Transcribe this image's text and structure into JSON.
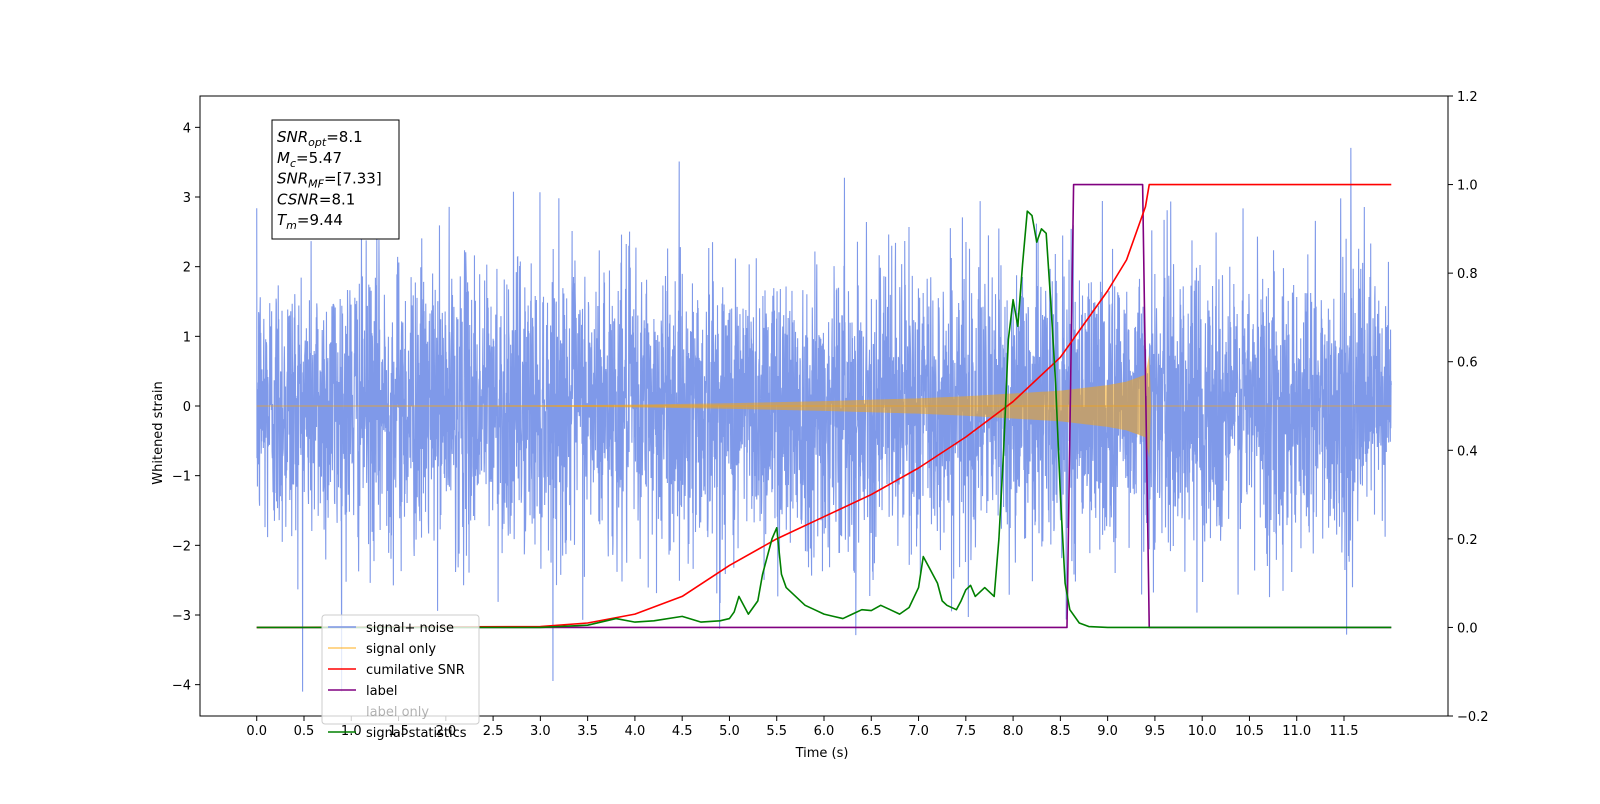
{
  "chart_data": {
    "type": "line",
    "xlabel": "Time (s)",
    "ylabel": "Whitened strain",
    "xlim": [
      -0.6,
      12.6
    ],
    "ylim_left": [
      -4.45,
      4.45
    ],
    "ylim_right": [
      -0.2,
      1.2
    ],
    "x_ticks": [
      0.0,
      0.5,
      1.0,
      1.5,
      2.0,
      2.5,
      3.0,
      3.5,
      4.0,
      4.5,
      5.0,
      5.5,
      6.0,
      6.5,
      7.0,
      7.5,
      8.0,
      8.5,
      9.0,
      9.5,
      10.0,
      10.5,
      11.0,
      11.5
    ],
    "x_tick_labels": [
      "0.0",
      "0.5",
      "1.0",
      "1.5",
      "2.0",
      "2.5",
      "3.0",
      "3.5",
      "4.0",
      "4.5",
      "5.0",
      "5.5",
      "6.0",
      "6.5",
      "7.0",
      "7.5",
      "8.0",
      "8.5",
      "9.0",
      "9.5",
      "10.0",
      "10.5",
      "11.0",
      "11.5"
    ],
    "y_left_ticks": [
      4,
      3,
      2,
      1,
      0,
      -1,
      -2,
      -3,
      -4
    ],
    "y_left_tick_labels": [
      "4",
      "3",
      "2",
      "1",
      "0",
      "−1",
      "−2",
      "−3",
      "−4"
    ],
    "y_right_ticks": [
      1.2,
      1.0,
      0.8,
      0.6,
      0.4,
      0.2,
      0.0,
      -0.2
    ],
    "y_right_tick_labels": [
      "1.2",
      "1.0",
      "0.8",
      "0.6",
      "0.4",
      "0.2",
      "0.0",
      "−0.2"
    ],
    "grid": false,
    "legend_position": "lower-left",
    "series": [
      {
        "name": "signal+ noise",
        "axis": "left",
        "color": "#7b96e8",
        "x_range": [
          0,
          12
        ],
        "noise_std": 1.1,
        "observed_max": 4.0,
        "observed_min": -4.1
      },
      {
        "name": "signal only",
        "axis": "left",
        "color": "#ffa500",
        "x": [
          0,
          2.0,
          3.0,
          4.0,
          5.0,
          6.0,
          7.0,
          7.5,
          8.0,
          8.5,
          9.0,
          9.2,
          9.4,
          9.44,
          9.46,
          12.0
        ],
        "envelope": [
          0.0,
          0.005,
          0.01,
          0.02,
          0.04,
          0.07,
          0.11,
          0.14,
          0.18,
          0.22,
          0.3,
          0.35,
          0.45,
          0.75,
          0.0,
          0.0
        ]
      },
      {
        "name": "cumilative SNR",
        "axis": "right",
        "color": "#ff0000",
        "x": [
          0,
          3.0,
          3.5,
          4.0,
          4.5,
          5.0,
          5.5,
          6.0,
          6.5,
          7.0,
          7.5,
          8.0,
          8.5,
          9.0,
          9.2,
          9.4,
          9.44,
          12.0
        ],
        "y": [
          0.0,
          0.002,
          0.01,
          0.03,
          0.07,
          0.14,
          0.2,
          0.25,
          0.3,
          0.36,
          0.43,
          0.51,
          0.61,
          0.76,
          0.83,
          0.95,
          1.0,
          1.0
        ]
      },
      {
        "name": "label",
        "axis": "right",
        "color": "#800080",
        "x": [
          0,
          8.57,
          8.64,
          9.37,
          9.44,
          12.0
        ],
        "y": [
          0.0,
          0.0,
          1.0,
          1.0,
          0.0,
          0.0
        ]
      },
      {
        "name": "label only",
        "axis": "right",
        "color": "#d3d3d3",
        "hidden": true
      },
      {
        "name": "signal statistics",
        "axis": "right",
        "color": "#008000",
        "x": [
          0,
          3.0,
          3.5,
          3.8,
          4.0,
          4.2,
          4.5,
          4.7,
          4.9,
          5.0,
          5.05,
          5.1,
          5.2,
          5.3,
          5.35,
          5.45,
          5.5,
          5.55,
          5.6,
          5.7,
          5.8,
          5.9,
          6.0,
          6.1,
          6.2,
          6.3,
          6.4,
          6.5,
          6.6,
          6.7,
          6.8,
          6.9,
          7.0,
          7.05,
          7.1,
          7.2,
          7.25,
          7.3,
          7.4,
          7.45,
          7.5,
          7.55,
          7.6,
          7.7,
          7.8,
          7.85,
          7.9,
          7.95,
          8.0,
          8.05,
          8.1,
          8.15,
          8.2,
          8.25,
          8.3,
          8.35,
          8.4,
          8.45,
          8.5,
          8.55,
          8.6,
          8.7,
          8.8,
          9.0,
          12.0
        ],
        "y": [
          0.0,
          0.0,
          0.005,
          0.02,
          0.012,
          0.015,
          0.025,
          0.012,
          0.015,
          0.02,
          0.035,
          0.07,
          0.03,
          0.06,
          0.12,
          0.2,
          0.225,
          0.12,
          0.09,
          0.07,
          0.05,
          0.04,
          0.03,
          0.025,
          0.02,
          0.03,
          0.04,
          0.038,
          0.05,
          0.04,
          0.03,
          0.045,
          0.09,
          0.16,
          0.14,
          0.1,
          0.06,
          0.05,
          0.04,
          0.06,
          0.085,
          0.095,
          0.07,
          0.09,
          0.07,
          0.2,
          0.4,
          0.65,
          0.74,
          0.68,
          0.82,
          0.94,
          0.93,
          0.87,
          0.9,
          0.89,
          0.73,
          0.55,
          0.3,
          0.1,
          0.04,
          0.01,
          0.002,
          0.0,
          0.0
        ]
      }
    ],
    "annotation": {
      "lines": [
        {
          "label": "SNR",
          "sub": "opt",
          "value": "=8.1"
        },
        {
          "label": "M",
          "sub": "c",
          "value": "=5.47"
        },
        {
          "label": "SNR",
          "sub": "MF",
          "value": "=[7.33]"
        },
        {
          "label": "CSNR",
          "sub": "",
          "value": "=8.1"
        },
        {
          "label": "T",
          "sub": "m",
          "value": "=9.44"
        }
      ]
    }
  }
}
